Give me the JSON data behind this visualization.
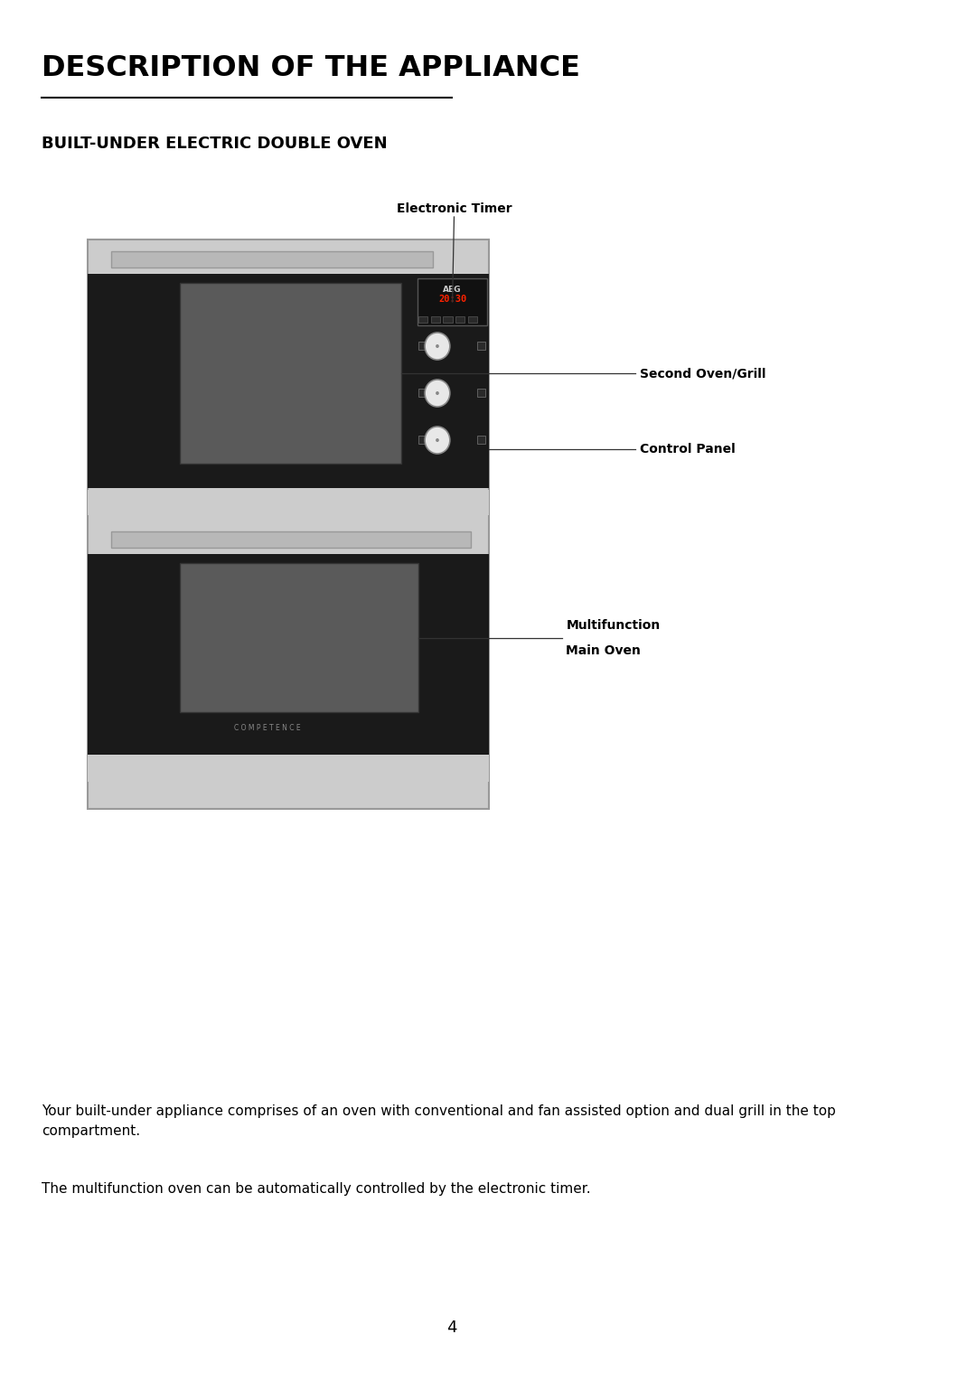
{
  "title": "DESCRIPTION OF THE APPLIANCE",
  "subtitle": "BUILT-UNDER ELECTRIC DOUBLE OVEN",
  "body_text1": "Your built-under appliance comprises of an oven with conventional and fan assisted option and dual grill in the top\ncompartment.",
  "body_text2": "The multifunction oven can be automatically controlled by the electronic timer.",
  "page_number": "4",
  "label_timer": "Electronic Timer",
  "label_second_oven": "Second Oven/Grill",
  "label_control": "Control Panel",
  "label_main_oven_line1": "Multifunction",
  "label_main_oven_line2": "Main Oven",
  "bg_color": "#ffffff",
  "oven_body_color": "#cccccc",
  "oven_black": "#1a1a1a",
  "oven_glass_color": "#5a5a5a",
  "knob_color": "#e8e8e8",
  "display_text_color": "#ff2200",
  "aeg_text": "AEG",
  "competence_text": "C O M P E T E N C E"
}
